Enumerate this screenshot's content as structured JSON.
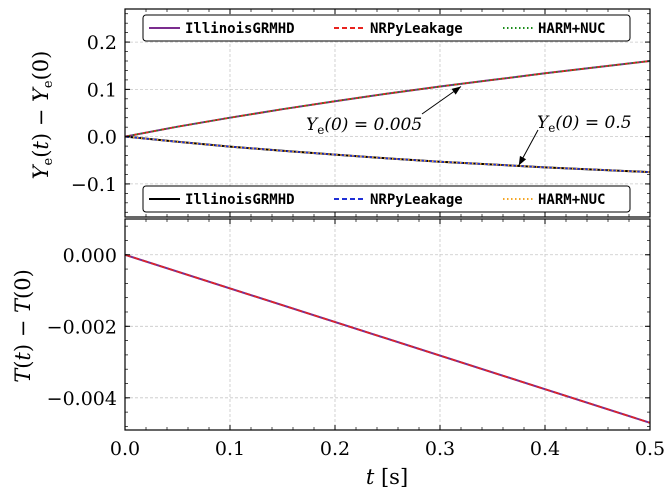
{
  "chart_data": [
    {
      "type": "line",
      "xlabel": "",
      "ylabel": "Y_e(t) − Y_e(0)",
      "xlim": [
        0,
        0.5
      ],
      "ylim": [
        -0.17,
        0.27
      ],
      "xticks": [
        0.0,
        0.1,
        0.2,
        0.3,
        0.4,
        0.5
      ],
      "yticks": [
        0.2,
        0.1,
        0.0,
        -0.1
      ],
      "ytick_labels": [
        "0.2",
        "0.1",
        "0.0",
        "−0.1"
      ],
      "grid": true,
      "legends": [
        {
          "placement": "top-right",
          "entries": [
            {
              "name": "IllinoisGRMHD",
              "color": "#7b2d8e",
              "style": "solid"
            },
            {
              "name": "NRPyLeakage",
              "color": "#e8231f",
              "style": "dashed"
            },
            {
              "name": "HARM+NUC",
              "color": "#1a8c1a",
              "style": "dotted"
            }
          ]
        },
        {
          "placement": "bottom-right",
          "entries": [
            {
              "name": "IllinoisGRMHD",
              "color": "#000000",
              "style": "solid"
            },
            {
              "name": "NRPyLeakage",
              "color": "#1f2fd6",
              "style": "dashed"
            },
            {
              "name": "HARM+NUC",
              "color": "#f5a623",
              "style": "dotted"
            }
          ]
        }
      ],
      "series": [
        {
          "group": "Y_e(0) = 0.005",
          "color": "#7b2d8e",
          "style": "solid",
          "x": [
            0.0,
            0.05,
            0.1,
            0.15,
            0.2,
            0.25,
            0.3,
            0.35,
            0.4,
            0.45,
            0.5
          ],
          "values": [
            0.0,
            0.021,
            0.04,
            0.058,
            0.075,
            0.091,
            0.106,
            0.12,
            0.134,
            0.147,
            0.16
          ]
        },
        {
          "group": "Y_e(0) = 0.005",
          "color": "#e8231f",
          "style": "dashed",
          "x": [
            0.0,
            0.05,
            0.1,
            0.15,
            0.2,
            0.25,
            0.3,
            0.35,
            0.4,
            0.45,
            0.5
          ],
          "values": [
            0.0,
            0.021,
            0.04,
            0.058,
            0.075,
            0.091,
            0.106,
            0.12,
            0.134,
            0.147,
            0.16
          ]
        },
        {
          "group": "Y_e(0) = 0.005",
          "color": "#1a8c1a",
          "style": "dotted",
          "x": [
            0.0,
            0.05,
            0.1,
            0.15,
            0.2,
            0.25,
            0.3,
            0.35,
            0.4,
            0.45,
            0.5
          ],
          "values": [
            0.0,
            0.021,
            0.04,
            0.058,
            0.075,
            0.091,
            0.106,
            0.12,
            0.134,
            0.147,
            0.16
          ]
        },
        {
          "group": "Y_e(0) = 0.5",
          "color": "#000000",
          "style": "solid",
          "x": [
            0.0,
            0.05,
            0.1,
            0.15,
            0.2,
            0.25,
            0.3,
            0.35,
            0.4,
            0.45,
            0.5
          ],
          "values": [
            0.0,
            -0.011,
            -0.021,
            -0.03,
            -0.038,
            -0.046,
            -0.053,
            -0.059,
            -0.065,
            -0.07,
            -0.075
          ]
        },
        {
          "group": "Y_e(0) = 0.5",
          "color": "#1f2fd6",
          "style": "dashed",
          "x": [
            0.0,
            0.05,
            0.1,
            0.15,
            0.2,
            0.25,
            0.3,
            0.35,
            0.4,
            0.45,
            0.5
          ],
          "values": [
            0.0,
            -0.011,
            -0.021,
            -0.03,
            -0.038,
            -0.046,
            -0.053,
            -0.059,
            -0.065,
            -0.07,
            -0.075
          ]
        },
        {
          "group": "Y_e(0) = 0.5",
          "color": "#f5a623",
          "style": "dotted",
          "x": [
            0.0,
            0.05,
            0.1,
            0.15,
            0.2,
            0.25,
            0.3,
            0.35,
            0.4,
            0.45,
            0.5
          ],
          "values": [
            0.0,
            -0.011,
            -0.021,
            -0.03,
            -0.038,
            -0.046,
            -0.053,
            -0.059,
            -0.065,
            -0.07,
            -0.075
          ]
        }
      ],
      "annotations": [
        {
          "text": "Y_e(0) = 0.005",
          "points_to": [
            0.32,
            0.106
          ]
        },
        {
          "text": "Y_e(0) = 0.5",
          "points_to": [
            0.375,
            -0.061
          ]
        }
      ]
    },
    {
      "type": "line",
      "xlabel": "t [s]",
      "ylabel": "T(t) − T(0)",
      "xlim": [
        0,
        0.5
      ],
      "ylim": [
        -0.0049,
        0.001
      ],
      "xticks": [
        0.0,
        0.1,
        0.2,
        0.3,
        0.4,
        0.5
      ],
      "xtick_labels": [
        "0.0",
        "0.1",
        "0.2",
        "0.3",
        "0.4",
        "0.5"
      ],
      "yticks": [
        0.0,
        -0.002,
        -0.004
      ],
      "ytick_labels": [
        "0.000",
        "−0.002",
        "−0.004"
      ],
      "grid": true,
      "series": [
        {
          "color": "#7b2d8e",
          "style": "solid",
          "x": [
            0.0,
            0.5
          ],
          "values": [
            0.0,
            -0.0047
          ]
        },
        {
          "color": "#1f2fd6",
          "style": "dashed",
          "x": [
            0.0,
            0.5
          ],
          "values": [
            0.0,
            -0.0047
          ]
        },
        {
          "color": "#e8231f",
          "style": "dashed",
          "x": [
            0.0,
            0.5
          ],
          "values": [
            0.0,
            -0.0047
          ]
        }
      ]
    }
  ]
}
